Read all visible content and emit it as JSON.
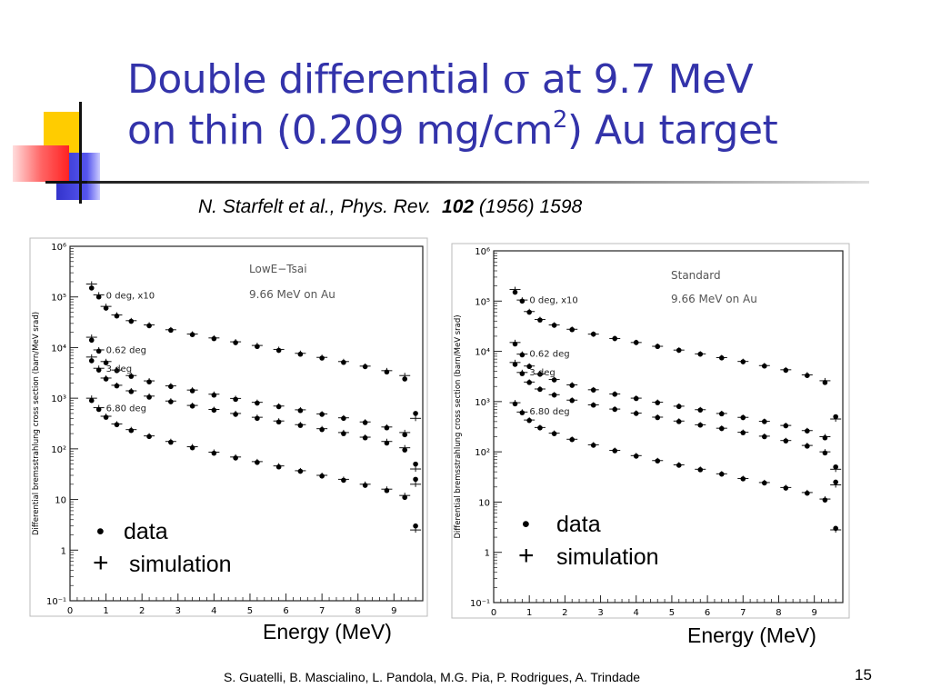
{
  "slide": {
    "title_line1_a": "Double differential ",
    "title_symbol": "σ",
    "title_line1_b": " at 9.7 MeV",
    "title_line2_a": "on thin (0.209 mg/cm",
    "title_sup": "2",
    "title_line2_b": ") Au target",
    "citation_a": "N. Starfelt et al., Phys. Rev.  ",
    "citation_volume": "102",
    "citation_b": " (1956) 1598",
    "footer": "S. Guatelli, B. Mascialino, L. Pandola, M.G. Pia, P. Rodrigues, A. Trindade",
    "page_number": "15",
    "legend": {
      "data_label": "data",
      "data_marker": "•",
      "sim_label": "simulation",
      "sim_marker": "+"
    },
    "energy_label": "Energy (MeV)",
    "colors": {
      "title": "#3333aa",
      "deco_yellow": "#ffcc00",
      "deco_blue": "#3333cc",
      "deco_red": "#ff3333"
    }
  },
  "chart_data": [
    {
      "type": "scatter",
      "ylabel": "Differential bremsstrahlung cross section (barn/MeV srad)",
      "xlabel": "",
      "yscale": "log",
      "xlim": [
        0,
        9.8
      ],
      "ylim": [
        0.1,
        1000000
      ],
      "x_ticks": [
        "0",
        "1",
        "2",
        "3",
        "4",
        "5",
        "6",
        "7",
        "8",
        "9"
      ],
      "y_ticks": [
        "10⁻¹",
        "1",
        "10",
        "10²",
        "10³",
        "10⁴",
        "10⁵",
        "10⁶"
      ],
      "annotations": [
        "LowE−Tsai",
        "9.66 MeV on Au",
        "0 deg, x10",
        "0.62 deg",
        "3 deg",
        "6.80 deg"
      ],
      "series": [
        {
          "name": "0 deg, x10",
          "x": [
            0.6,
            0.8,
            1.0,
            1.3,
            1.7,
            2.2,
            2.8,
            3.4,
            4.0,
            4.6,
            5.2,
            5.8,
            6.4,
            7.0,
            7.6,
            8.2,
            8.8,
            9.3,
            9.6
          ],
          "data": [
            150000,
            100000,
            60000,
            42000,
            33000,
            27000,
            22000,
            18000,
            15000,
            12500,
            10500,
            8800,
            7400,
            6200,
            5100,
            4200,
            3300,
            2400,
            500
          ],
          "sim": [
            180000,
            110000,
            65000,
            44000,
            34000,
            28000,
            22500,
            18500,
            15500,
            13000,
            11000,
            9200,
            7700,
            6400,
            5300,
            4300,
            3500,
            2800,
            400
          ]
        },
        {
          "name": "0.62 deg",
          "x": [
            0.6,
            0.8,
            1.0,
            1.3,
            1.7,
            2.2,
            2.8,
            3.4,
            4.0,
            4.6,
            5.2,
            5.8,
            6.4,
            7.0,
            7.6,
            8.2,
            8.8,
            9.3,
            9.6
          ],
          "data": [
            14000,
            8500,
            5000,
            3500,
            2700,
            2100,
            1700,
            1400,
            1150,
            950,
            800,
            680,
            570,
            480,
            400,
            330,
            260,
            190,
            50
          ],
          "sim": [
            16000,
            9000,
            5300,
            3600,
            2800,
            2200,
            1750,
            1450,
            1200,
            990,
            830,
            700,
            590,
            490,
            410,
            340,
            270,
            210,
            40
          ]
        },
        {
          "name": "3 deg",
          "x": [
            0.6,
            0.8,
            1.0,
            1.3,
            1.7,
            2.2,
            2.8,
            3.4,
            4.0,
            4.6,
            5.2,
            5.8,
            6.4,
            7.0,
            7.6,
            8.2,
            8.8,
            9.3,
            9.6
          ],
          "data": [
            5500,
            3600,
            2400,
            1750,
            1350,
            1050,
            850,
            700,
            580,
            480,
            400,
            340,
            290,
            240,
            200,
            165,
            130,
            95,
            25
          ],
          "sim": [
            6500,
            3900,
            2500,
            1800,
            1400,
            1100,
            880,
            720,
            600,
            500,
            420,
            355,
            300,
            250,
            210,
            170,
            140,
            105,
            20
          ]
        },
        {
          "name": "6.80 deg",
          "x": [
            0.6,
            0.8,
            1.0,
            1.3,
            1.7,
            2.2,
            2.8,
            3.4,
            4.0,
            4.6,
            5.2,
            5.8,
            6.4,
            7.0,
            7.6,
            8.2,
            8.8,
            9.3,
            9.6
          ],
          "data": [
            900,
            600,
            420,
            300,
            230,
            175,
            135,
            105,
            82,
            66,
            54,
            44,
            36,
            29,
            24,
            19,
            15,
            11,
            3
          ],
          "sim": [
            1000,
            650,
            440,
            310,
            240,
            180,
            140,
            110,
            86,
            69,
            56,
            46,
            37,
            30,
            25,
            20,
            16,
            12,
            2.5
          ]
        }
      ]
    },
    {
      "type": "scatter",
      "ylabel": "Differential bremsstrahlung cross section (barn/MeV srad)",
      "xlabel": "",
      "yscale": "log",
      "xlim": [
        0,
        9.8
      ],
      "ylim": [
        0.1,
        1000000
      ],
      "x_ticks": [
        "0",
        "1",
        "2",
        "3",
        "4",
        "5",
        "6",
        "7",
        "8",
        "9"
      ],
      "y_ticks": [
        "10⁻¹",
        "1",
        "10",
        "10²",
        "10³",
        "10⁴",
        "10⁵",
        "10⁶"
      ],
      "annotations": [
        "Standard",
        "9.66 MeV on Au",
        "0 deg, x10",
        "0.62 deg",
        "3 deg",
        "6.80 deg"
      ],
      "series": [
        {
          "name": "0 deg, x10",
          "x": [
            0.6,
            0.8,
            1.0,
            1.3,
            1.7,
            2.2,
            2.8,
            3.4,
            4.0,
            4.6,
            5.2,
            5.8,
            6.4,
            7.0,
            7.6,
            8.2,
            8.8,
            9.3,
            9.6
          ],
          "data": [
            150000,
            100000,
            60000,
            42000,
            33000,
            27000,
            22000,
            18000,
            15000,
            12500,
            10500,
            8800,
            7400,
            6200,
            5100,
            4200,
            3300,
            2400,
            500
          ],
          "sim": [
            170000,
            105000,
            62000,
            43000,
            33500,
            27500,
            22000,
            18000,
            15000,
            12600,
            10600,
            8900,
            7500,
            6300,
            5200,
            4300,
            3400,
            2600,
            450
          ]
        },
        {
          "name": "0.62 deg",
          "x": [
            0.6,
            0.8,
            1.0,
            1.3,
            1.7,
            2.2,
            2.8,
            3.4,
            4.0,
            4.6,
            5.2,
            5.8,
            6.4,
            7.0,
            7.6,
            8.2,
            8.8,
            9.3,
            9.6
          ],
          "data": [
            14000,
            8500,
            5000,
            3500,
            2700,
            2100,
            1700,
            1400,
            1150,
            950,
            800,
            680,
            570,
            480,
            400,
            330,
            260,
            190,
            50
          ],
          "sim": [
            15000,
            8800,
            5100,
            3550,
            2750,
            2150,
            1720,
            1420,
            1170,
            970,
            810,
            690,
            580,
            485,
            405,
            335,
            265,
            200,
            45
          ]
        },
        {
          "name": "3 deg",
          "x": [
            0.6,
            0.8,
            1.0,
            1.3,
            1.7,
            2.2,
            2.8,
            3.4,
            4.0,
            4.6,
            5.2,
            5.8,
            6.4,
            7.0,
            7.6,
            8.2,
            8.8,
            9.3,
            9.6
          ],
          "data": [
            5500,
            3600,
            2400,
            1750,
            1350,
            1050,
            850,
            700,
            580,
            480,
            400,
            340,
            290,
            240,
            200,
            165,
            130,
            95,
            25
          ],
          "sim": [
            6000,
            3800,
            2450,
            1780,
            1370,
            1070,
            860,
            710,
            590,
            490,
            410,
            345,
            295,
            245,
            205,
            168,
            134,
            100,
            22
          ]
        },
        {
          "name": "6.80 deg",
          "x": [
            0.6,
            0.8,
            1.0,
            1.3,
            1.7,
            2.2,
            2.8,
            3.4,
            4.0,
            4.6,
            5.2,
            5.8,
            6.4,
            7.0,
            7.6,
            8.2,
            8.8,
            9.3,
            9.6
          ],
          "data": [
            900,
            600,
            420,
            300,
            230,
            175,
            135,
            105,
            82,
            66,
            54,
            44,
            36,
            29,
            24,
            19,
            15,
            11,
            3
          ],
          "sim": [
            950,
            620,
            430,
            305,
            235,
            178,
            138,
            107,
            84,
            67,
            55,
            45,
            36.5,
            29.5,
            24.5,
            19.5,
            15.5,
            11.5,
            2.8
          ]
        }
      ]
    }
  ]
}
